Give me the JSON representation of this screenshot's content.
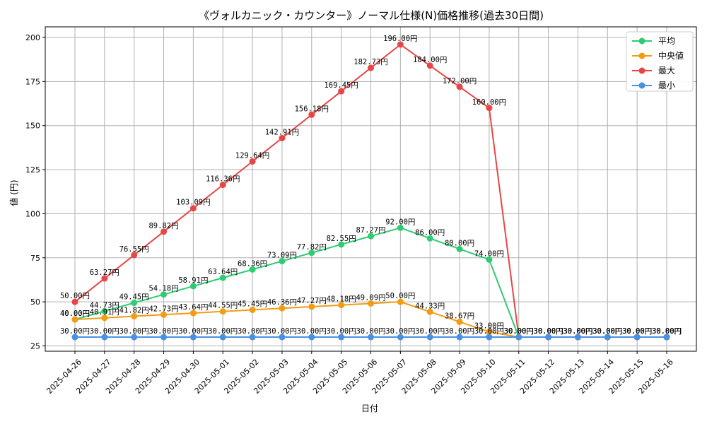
{
  "chart_data": {
    "type": "line",
    "title": "《ヴォルカニック・カウンター》ノーマル仕様(N)価格推移(過去30日間)",
    "xlabel": "日付",
    "ylabel": "値 (円)",
    "ylim": [
      22,
      206
    ],
    "yticks": [
      25,
      50,
      75,
      100,
      125,
      150,
      175,
      200
    ],
    "grid": true,
    "legend_position": "top-right",
    "label_suffix": "円",
    "categories": [
      "2025-04-26",
      "2025-04-27",
      "2025-04-28",
      "2025-04-29",
      "2025-04-30",
      "2025-05-01",
      "2025-05-02",
      "2025-05-03",
      "2025-05-04",
      "2025-05-05",
      "2025-05-06",
      "2025-05-07",
      "2025-05-08",
      "2025-05-09",
      "2025-05-10",
      "2025-05-11",
      "2025-05-12",
      "2025-05-13",
      "2025-05-14",
      "2025-05-15",
      "2025-05-16"
    ],
    "series": [
      {
        "name": "平均",
        "color": "#2ecc71",
        "values": [
          40.0,
          44.73,
          49.45,
          54.18,
          58.91,
          63.64,
          68.36,
          73.09,
          77.82,
          82.55,
          87.27,
          92.0,
          86.0,
          80.0,
          74.0,
          30.0,
          30.0,
          30.0,
          30.0,
          30.0,
          30.0
        ]
      },
      {
        "name": "中央値",
        "color": "#f39c12",
        "values": [
          40.0,
          40.91,
          41.82,
          42.73,
          43.64,
          44.55,
          45.45,
          46.36,
          47.27,
          48.18,
          49.09,
          50.0,
          44.33,
          38.67,
          33.0,
          30.0,
          30.0,
          30.0,
          30.0,
          30.0,
          30.0
        ]
      },
      {
        "name": "最大",
        "color": "#e84646",
        "values": [
          50.0,
          63.27,
          76.55,
          89.82,
          103.09,
          116.36,
          129.64,
          142.91,
          156.18,
          169.45,
          182.73,
          196.0,
          184.0,
          172.0,
          160.0,
          30.0,
          30.0,
          30.0,
          30.0,
          30.0,
          30.0
        ]
      },
      {
        "name": "最小",
        "color": "#4a90e2",
        "values": [
          30.0,
          30.0,
          30.0,
          30.0,
          30.0,
          30.0,
          30.0,
          30.0,
          30.0,
          30.0,
          30.0,
          30.0,
          30.0,
          30.0,
          30.0,
          30.0,
          30.0,
          30.0,
          30.0,
          30.0,
          30.0
        ]
      }
    ]
  }
}
